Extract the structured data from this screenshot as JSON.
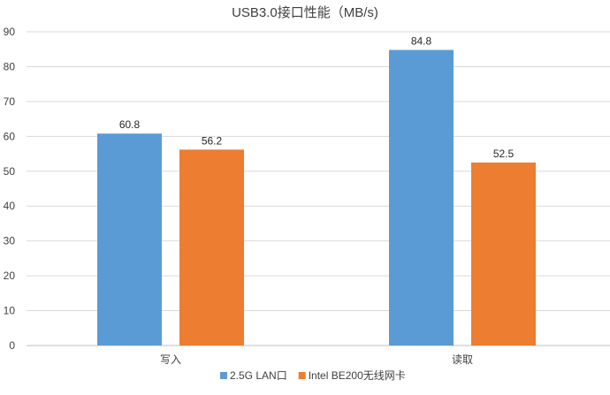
{
  "chart_data": {
    "type": "bar",
    "title": "USB3.0接口性能（MB/s)",
    "xlabel": "",
    "ylabel": "",
    "categories": [
      "写入",
      "读取"
    ],
    "series": [
      {
        "name": "2.5G LAN口",
        "color": "#5b9bd5",
        "values": [
          60.8,
          84.8
        ]
      },
      {
        "name": "Intel BE200无线网卡",
        "color": "#ed7d31",
        "values": [
          56.2,
          52.5
        ]
      }
    ],
    "ylim": [
      0,
      90
    ],
    "yticks": [
      0,
      10,
      20,
      30,
      40,
      50,
      60,
      70,
      80,
      90
    ],
    "grid": true,
    "legend_position": "bottom",
    "data_labels": [
      "60.8",
      "56.2",
      "84.8",
      "52.5"
    ]
  }
}
